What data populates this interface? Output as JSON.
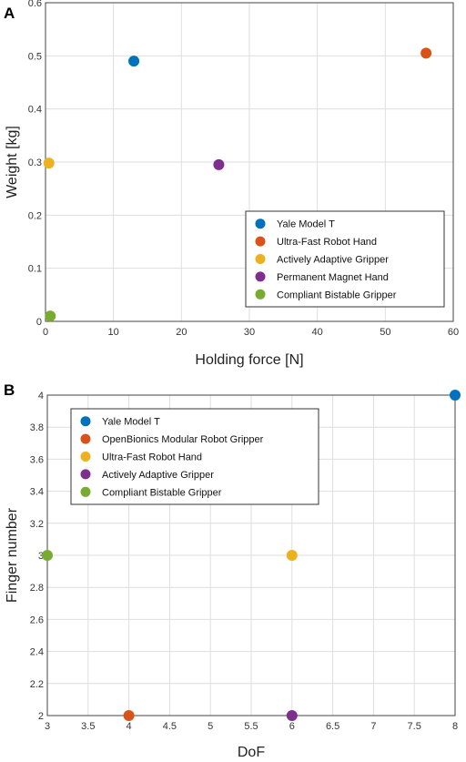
{
  "chart_data": [
    {
      "panel": "A",
      "type": "scatter",
      "xlabel": "Holding force [N]",
      "ylabel": "Weight [kg]",
      "xlim": [
        0,
        60
      ],
      "ylim": [
        0,
        0.6
      ],
      "xticks": [
        0,
        10,
        20,
        30,
        40,
        50,
        60
      ],
      "yticks": [
        0,
        0.1,
        0.2,
        0.3,
        0.4,
        0.5,
        0.6
      ],
      "grid": true,
      "legend_position": "lower-right",
      "series": [
        {
          "name": "Yale Model T",
          "color": "#0072BD",
          "x": 13,
          "y": 0.49
        },
        {
          "name": "Ultra-Fast Robot Hand",
          "color": "#D95319",
          "x": 56,
          "y": 0.505
        },
        {
          "name": "Actively Adaptive Gripper",
          "color": "#EDB120",
          "x": 0.5,
          "y": 0.298
        },
        {
          "name": "Permanent Magnet Hand",
          "color": "#7E2F8E",
          "x": 25.5,
          "y": 0.295
        },
        {
          "name": "Compliant Bistable Gripper",
          "color": "#77AC30",
          "x": 0.7,
          "y": 0.01
        }
      ]
    },
    {
      "panel": "B",
      "type": "scatter",
      "xlabel": "DoF",
      "ylabel": "Finger number",
      "xlim": [
        3,
        8
      ],
      "ylim": [
        2,
        4
      ],
      "xticks": [
        3,
        3.5,
        4,
        4.5,
        5,
        5.5,
        6,
        6.5,
        7,
        7.5,
        8
      ],
      "yticks": [
        2,
        2.2,
        2.4,
        2.6,
        2.8,
        3,
        3.2,
        3.4,
        3.6,
        3.8,
        4
      ],
      "grid": true,
      "legend_position": "top-left",
      "series": [
        {
          "name": "Yale Model T",
          "color": "#0072BD",
          "x": 8,
          "y": 4
        },
        {
          "name": "OpenBionics Modular Robot Gripper",
          "color": "#D95319",
          "x": 4,
          "y": 2
        },
        {
          "name": "Ultra-Fast Robot Hand",
          "color": "#EDB120",
          "x": 6,
          "y": 3
        },
        {
          "name": "Actively Adaptive Gripper",
          "color": "#7E2F8E",
          "x": 6,
          "y": 2
        },
        {
          "name": "Compliant Bistable Gripper",
          "color": "#77AC30",
          "x": 3,
          "y": 3
        }
      ]
    }
  ]
}
